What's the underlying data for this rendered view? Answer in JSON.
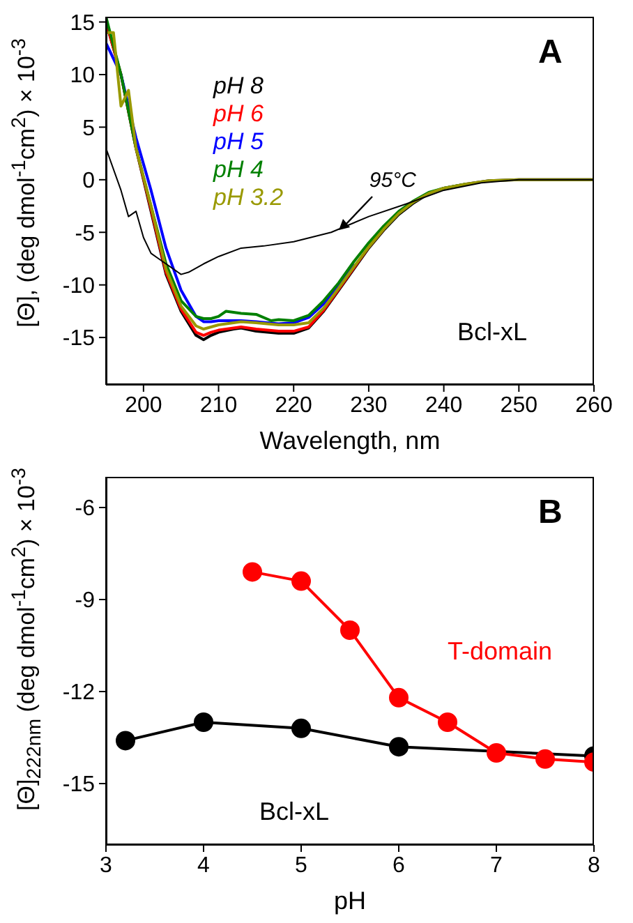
{
  "chart_data": [
    {
      "type": "line",
      "xlabel": "Wavelength, nm",
      "ylabel": "[Θ], (deg dmol$^{-1}$cm$^{2}$) × 10$^{-3}$",
      "xlim": [
        195,
        260
      ],
      "ylim": [
        -19.5,
        15.5
      ],
      "xticks": [
        200,
        210,
        220,
        230,
        240,
        250,
        260
      ],
      "yticks": [
        -15,
        -10,
        -5,
        0,
        5,
        10,
        15
      ],
      "legend": "top left",
      "marker": "none",
      "line_style": "solid",
      "annotations": [
        "A",
        "Bcl-xL",
        {
          "text": "95°C",
          "x": 226,
          "y": -4.8
        }
      ],
      "series": [
        {
          "name": "pH 8",
          "color": "#000000",
          "x": [
            195,
            197,
            199,
            201,
            203,
            205,
            207,
            208,
            209,
            210,
            212,
            213,
            215,
            218,
            220,
            222,
            224,
            226,
            228,
            230,
            232,
            234,
            236,
            238,
            240,
            243,
            246,
            250,
            255,
            260
          ],
          "values": [
            15,
            10,
            3,
            -3,
            -9,
            -12.5,
            -14.8,
            -15.2,
            -14.8,
            -14.5,
            -14.2,
            -14.1,
            -14.4,
            -14.6,
            -14.6,
            -14.1,
            -12.5,
            -10.5,
            -8.5,
            -6.5,
            -4.8,
            -3.3,
            -2.2,
            -1.3,
            -0.8,
            -0.4,
            -0.1,
            0,
            0,
            0
          ]
        },
        {
          "name": "pH 6",
          "color": "#ff0000",
          "x": [
            195,
            197,
            199,
            201,
            203,
            205,
            207,
            208,
            209,
            210,
            212,
            213,
            215,
            218,
            220,
            222,
            224,
            226,
            228,
            230,
            232
          ],
          "values": [
            15,
            10,
            3,
            -2.8,
            -8.8,
            -12.3,
            -14.5,
            -14.8,
            -14.5,
            -14.3,
            -14.1,
            -14,
            -14.2,
            -14.4,
            -14.4,
            -14,
            -12.4,
            -10.4,
            -8.4,
            -6.4,
            -4.7
          ]
        },
        {
          "name": "pH 5",
          "color": "#0000ff",
          "x": [
            195,
            197,
            199,
            201,
            203,
            205,
            207,
            208,
            209,
            210,
            212,
            213,
            215,
            218,
            220,
            222,
            224,
            226,
            228
          ],
          "values": [
            13,
            10,
            4,
            -1,
            -6.5,
            -10.5,
            -13,
            -13.5,
            -13.5,
            -13.4,
            -13.4,
            -13.4,
            -13.5,
            -13.7,
            -13.6,
            -13.1,
            -11.8,
            -10,
            -8
          ]
        },
        {
          "name": "pH 4",
          "color": "#008000",
          "x": [
            195,
            197,
            199,
            201,
            203,
            205,
            207,
            208,
            209,
            210,
            211,
            213,
            215,
            217,
            218,
            220,
            222,
            224,
            226,
            228,
            230,
            232,
            234,
            236,
            238,
            240,
            243
          ],
          "values": [
            15.5,
            10,
            3,
            -2.5,
            -8,
            -11.5,
            -13,
            -13.2,
            -13.2,
            -13,
            -12.5,
            -12.7,
            -12.8,
            -13.4,
            -13.3,
            -13.4,
            -12.9,
            -11.5,
            -9.8,
            -7.8,
            -6,
            -4.4,
            -3,
            -2,
            -1.2,
            -0.8,
            -0.4
          ]
        },
        {
          "name": "pH 3.2",
          "color": "#999900",
          "x": [
            195,
            196,
            197,
            198,
            199,
            201,
            203,
            205,
            207,
            208,
            209,
            210,
            212,
            213,
            215,
            218,
            220,
            222,
            224,
            226,
            228,
            230,
            232,
            234,
            236,
            238,
            240,
            243,
            246,
            250,
            255,
            260
          ],
          "values": [
            14,
            14,
            7,
            8.5,
            3,
            -2.5,
            -8.5,
            -12,
            -13.9,
            -14.2,
            -14,
            -13.8,
            -13.6,
            -13.5,
            -13.6,
            -13.8,
            -13.8,
            -13.6,
            -12.2,
            -10.3,
            -8.3,
            -6.4,
            -4.7,
            -3.2,
            -2.1,
            -1.3,
            -0.8,
            -0.4,
            -0.1,
            0,
            0,
            0
          ]
        },
        {
          "color": "#000000",
          "x": [
            195,
            197,
            198,
            199,
            200,
            201,
            202,
            203,
            205,
            206,
            208,
            210,
            213,
            216,
            220,
            225,
            230,
            235,
            240,
            245,
            250,
            260
          ],
          "values": [
            3,
            -1,
            -3.5,
            -3,
            -5.5,
            -7,
            -7.5,
            -8,
            -9,
            -8.8,
            -8,
            -7.3,
            -6.5,
            -6.3,
            -5.9,
            -5,
            -3.5,
            -2.3,
            -1,
            -0.3,
            0,
            0
          ]
        }
      ]
    },
    {
      "type": "line",
      "xlabel": "pH",
      "ylabel": "[Θ]$_{222nm}$ (deg dmol$^{-1}$cm$^{2}$) × 10$^{-3}$",
      "xlim": [
        3,
        8
      ],
      "ylim": [
        -17,
        -5
      ],
      "xticks": [
        3,
        4,
        5,
        6,
        7,
        8
      ],
      "yticks": [
        -15,
        -12,
        -9,
        -6
      ],
      "legend": false,
      "marker": "circle",
      "line_style": "solid",
      "annotations": [
        "B"
      ],
      "series": [
        {
          "name": "Bcl-xL",
          "color": "#000000",
          "x": [
            3.2,
            4,
            5,
            6,
            8
          ],
          "values": [
            -13.6,
            -13.0,
            -13.2,
            -13.8,
            -14.1
          ]
        },
        {
          "name": "T-domain",
          "color": "#ff0000",
          "x": [
            4.5,
            5,
            5.5,
            6,
            6.5,
            7,
            7.5,
            8
          ],
          "values": [
            -8.1,
            -8.4,
            -10.0,
            -12.2,
            -13.0,
            -14.0,
            -14.2,
            -14.3
          ]
        }
      ]
    }
  ]
}
